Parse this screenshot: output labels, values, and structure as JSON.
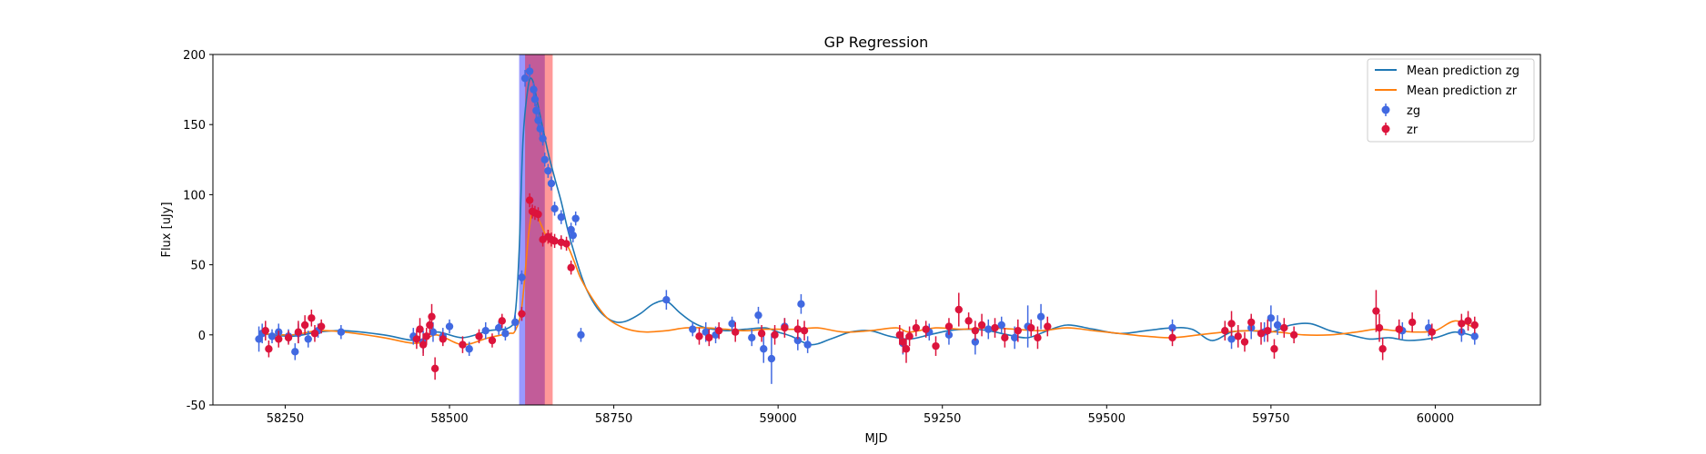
{
  "chart_data": {
    "type": "scatter",
    "title": "GP Regression",
    "xlabel": "MJD",
    "ylabel": "Flux [uJy]",
    "xlim": [
      58140,
      60160
    ],
    "ylim": [
      -50,
      200
    ],
    "xticks": [
      58250,
      58500,
      58750,
      59000,
      59250,
      59500,
      59750,
      60000
    ],
    "yticks": [
      -50,
      0,
      50,
      100,
      150,
      200
    ],
    "grid": false,
    "legend_position": "top-right",
    "legend": [
      {
        "label": "Mean prediction zg",
        "kind": "line",
        "color": "#1f77b4"
      },
      {
        "label": "Mean prediction zr",
        "kind": "line",
        "color": "#ff7f0e"
      },
      {
        "label": "zg",
        "kind": "errorbar",
        "color": "#4169e1"
      },
      {
        "label": "zr",
        "kind": "errorbar",
        "color": "#dc143c"
      }
    ],
    "shaded_regions": [
      {
        "x0": 58606,
        "x1": 58645,
        "color": "#0000ff",
        "opacity": 0.4
      },
      {
        "x0": 58615,
        "x1": 58657,
        "color": "#ff0000",
        "opacity": 0.4
      }
    ],
    "series": [
      {
        "name": "Mean prediction zg",
        "kind": "line",
        "color": "#1f77b4",
        "x": [
          58210,
          58260,
          58300,
          58340,
          58400,
          58450,
          58480,
          58520,
          58560,
          58590,
          58600,
          58606,
          58612,
          58620,
          58626,
          58632,
          58640,
          58650,
          58660,
          58670,
          58680,
          58690,
          58700,
          58710,
          58725,
          58740,
          58755,
          58770,
          58790,
          58810,
          58830,
          58850,
          58870,
          58890,
          58920,
          58950,
          58980,
          59000,
          59020,
          59050,
          59080,
          59110,
          59140,
          59170,
          59200,
          59230,
          59260,
          59290,
          59320,
          59350,
          59380,
          59410,
          59440,
          59480,
          59520,
          59560,
          59600,
          59630,
          59660,
          59690,
          59720,
          59750,
          59780,
          59810,
          59840,
          59870,
          59900,
          59930,
          59960,
          60000,
          60030,
          60060
        ],
        "y": [
          1,
          -1,
          2,
          3,
          0,
          -4,
          2,
          -2,
          3,
          5,
          15,
          60,
          140,
          178,
          182,
          170,
          152,
          130,
          112,
          95,
          75,
          58,
          43,
          31,
          19,
          12,
          9,
          10,
          15,
          22,
          24,
          16,
          9,
          5,
          3,
          4,
          5,
          2,
          -1,
          -7,
          -3,
          2,
          3,
          -1,
          -3,
          0,
          3,
          4,
          3,
          0,
          -2,
          3,
          7,
          4,
          1,
          3,
          5,
          4,
          -4,
          2,
          3,
          2,
          7,
          8,
          3,
          0,
          -3,
          -2,
          -4,
          -2,
          2,
          -1
        ]
      },
      {
        "name": "Mean prediction zr",
        "kind": "line",
        "color": "#ff7f0e",
        "x": [
          58210,
          58260,
          58300,
          58340,
          58400,
          58450,
          58480,
          58520,
          58560,
          58590,
          58600,
          58610,
          58620,
          58626,
          58632,
          58640,
          58650,
          58660,
          58670,
          58680,
          58690,
          58700,
          58720,
          58740,
          58760,
          58780,
          58800,
          58830,
          58860,
          58890,
          58920,
          58950,
          58980,
          59000,
          59030,
          59060,
          59100,
          59140,
          59180,
          59200,
          59240,
          59280,
          59320,
          59360,
          59400,
          59440,
          59480,
          59520,
          59560,
          59600,
          59640,
          59680,
          59720,
          59760,
          59800,
          59840,
          59880,
          59910,
          59940,
          59970,
          60000,
          60030,
          60060
        ],
        "y": [
          1,
          0,
          3,
          2,
          -2,
          -6,
          0,
          -7,
          -2,
          1,
          3,
          20,
          70,
          88,
          86,
          78,
          68,
          66,
          65,
          63,
          52,
          40,
          24,
          12,
          6,
          3,
          2,
          3,
          5,
          5,
          4,
          3,
          4,
          4,
          4,
          5,
          2,
          3,
          5,
          2,
          5,
          4,
          5,
          4,
          3,
          5,
          3,
          1,
          -1,
          -2,
          0,
          2,
          3,
          2,
          0,
          0,
          2,
          4,
          3,
          2,
          3,
          10,
          5
        ]
      },
      {
        "name": "zg",
        "kind": "errorbar",
        "color": "#4169e1",
        "x": [
          58210,
          58215,
          58230,
          58240,
          58255,
          58265,
          58270,
          58285,
          58300,
          58335,
          58445,
          58460,
          58475,
          58490,
          58500,
          58530,
          58555,
          58575,
          58585,
          58600,
          58610,
          58615,
          58622,
          58628,
          58630,
          58632,
          58635,
          58638,
          58642,
          58645,
          58650,
          58655,
          58660,
          58670,
          58685,
          58688,
          58692,
          58700,
          58830,
          58870,
          58890,
          58905,
          58930,
          58960,
          58970,
          58978,
          58990,
          59010,
          59030,
          59035,
          59045,
          59190,
          59230,
          59260,
          59300,
          59320,
          59340,
          59360,
          59380,
          59400,
          59600,
          59690,
          59720,
          59740,
          59750,
          59760,
          59950,
          59990,
          60040,
          60060
        ],
        "y": [
          -3,
          1,
          -1,
          2,
          -1,
          -12,
          1,
          -3,
          3,
          2,
          -1,
          -5,
          2,
          -1,
          6,
          -10,
          3,
          5,
          1,
          9,
          41,
          183,
          188,
          175,
          168,
          160,
          153,
          147,
          140,
          125,
          117,
          108,
          90,
          84,
          75,
          71,
          83,
          0,
          25,
          4,
          2,
          0,
          8,
          -2,
          14,
          -10,
          -17,
          6,
          -4,
          22,
          -7,
          -6,
          2,
          0,
          -5,
          4,
          7,
          -2,
          6,
          13,
          5,
          -3,
          5,
          2,
          12,
          7,
          3,
          5,
          2,
          -1
        ],
        "err": [
          9,
          7,
          5,
          6,
          5,
          6,
          7,
          6,
          5,
          5,
          6,
          8,
          7,
          6,
          5,
          5,
          6,
          5,
          5,
          6,
          5,
          6,
          5,
          5,
          5,
          5,
          5,
          5,
          5,
          5,
          5,
          5,
          5,
          5,
          5,
          5,
          5,
          5,
          7,
          5,
          7,
          6,
          5,
          6,
          6,
          10,
          18,
          6,
          7,
          7,
          6,
          8,
          6,
          7,
          9,
          7,
          6,
          8,
          15,
          9,
          6,
          7,
          8,
          7,
          9,
          7,
          6,
          6,
          7,
          6
        ]
      },
      {
        "name": "zr",
        "kind": "errorbar",
        "color": "#dc143c",
        "x": [
          58220,
          58225,
          58240,
          58255,
          58270,
          58280,
          58290,
          58295,
          58305,
          58450,
          58455,
          58460,
          58465,
          58470,
          58473,
          58478,
          58490,
          58520,
          58545,
          58565,
          58580,
          58610,
          58622,
          58626,
          58630,
          58635,
          58642,
          58650,
          58655,
          58660,
          58670,
          58678,
          58685,
          58880,
          58895,
          58910,
          58935,
          58975,
          58995,
          59010,
          59030,
          59040,
          59185,
          59190,
          59195,
          59200,
          59210,
          59225,
          59240,
          59260,
          59275,
          59290,
          59300,
          59310,
          59330,
          59345,
          59365,
          59385,
          59395,
          59410,
          59600,
          59680,
          59690,
          59700,
          59710,
          59720,
          59735,
          59745,
          59755,
          59770,
          59785,
          59910,
          59915,
          59920,
          59945,
          59965,
          59995,
          60040,
          60050,
          60060
        ],
        "y": [
          3,
          -10,
          -3,
          -2,
          2,
          7,
          12,
          1,
          6,
          -3,
          4,
          -7,
          -1,
          7,
          13,
          -24,
          -3,
          -7,
          -1,
          -4,
          10,
          15,
          96,
          88,
          87,
          86,
          68,
          70,
          68,
          67,
          66,
          65,
          48,
          -1,
          -2,
          3,
          2,
          1,
          0,
          5,
          4,
          3,
          0,
          -5,
          -10,
          -1,
          5,
          4,
          -8,
          6,
          18,
          10,
          3,
          7,
          5,
          -2,
          3,
          5,
          -2,
          6,
          -2,
          3,
          8,
          -1,
          -5,
          9,
          1,
          3,
          -10,
          5,
          0,
          17,
          5,
          -10,
          4,
          9,
          2,
          8,
          10,
          7
        ],
        "err": [
          7,
          6,
          6,
          5,
          8,
          7,
          6,
          6,
          5,
          7,
          8,
          8,
          6,
          7,
          9,
          8,
          5,
          6,
          5,
          5,
          5,
          5,
          5,
          5,
          5,
          5,
          5,
          5,
          5,
          5,
          5,
          5,
          5,
          6,
          6,
          6,
          7,
          6,
          7,
          7,
          7,
          7,
          7,
          8,
          10,
          7,
          6,
          6,
          7,
          6,
          12,
          6,
          7,
          8,
          7,
          7,
          8,
          6,
          8,
          7,
          6,
          7,
          9,
          8,
          7,
          6,
          8,
          8,
          7,
          7,
          6,
          15,
          10,
          8,
          7,
          7,
          6,
          7,
          7,
          6
        ]
      }
    ]
  }
}
